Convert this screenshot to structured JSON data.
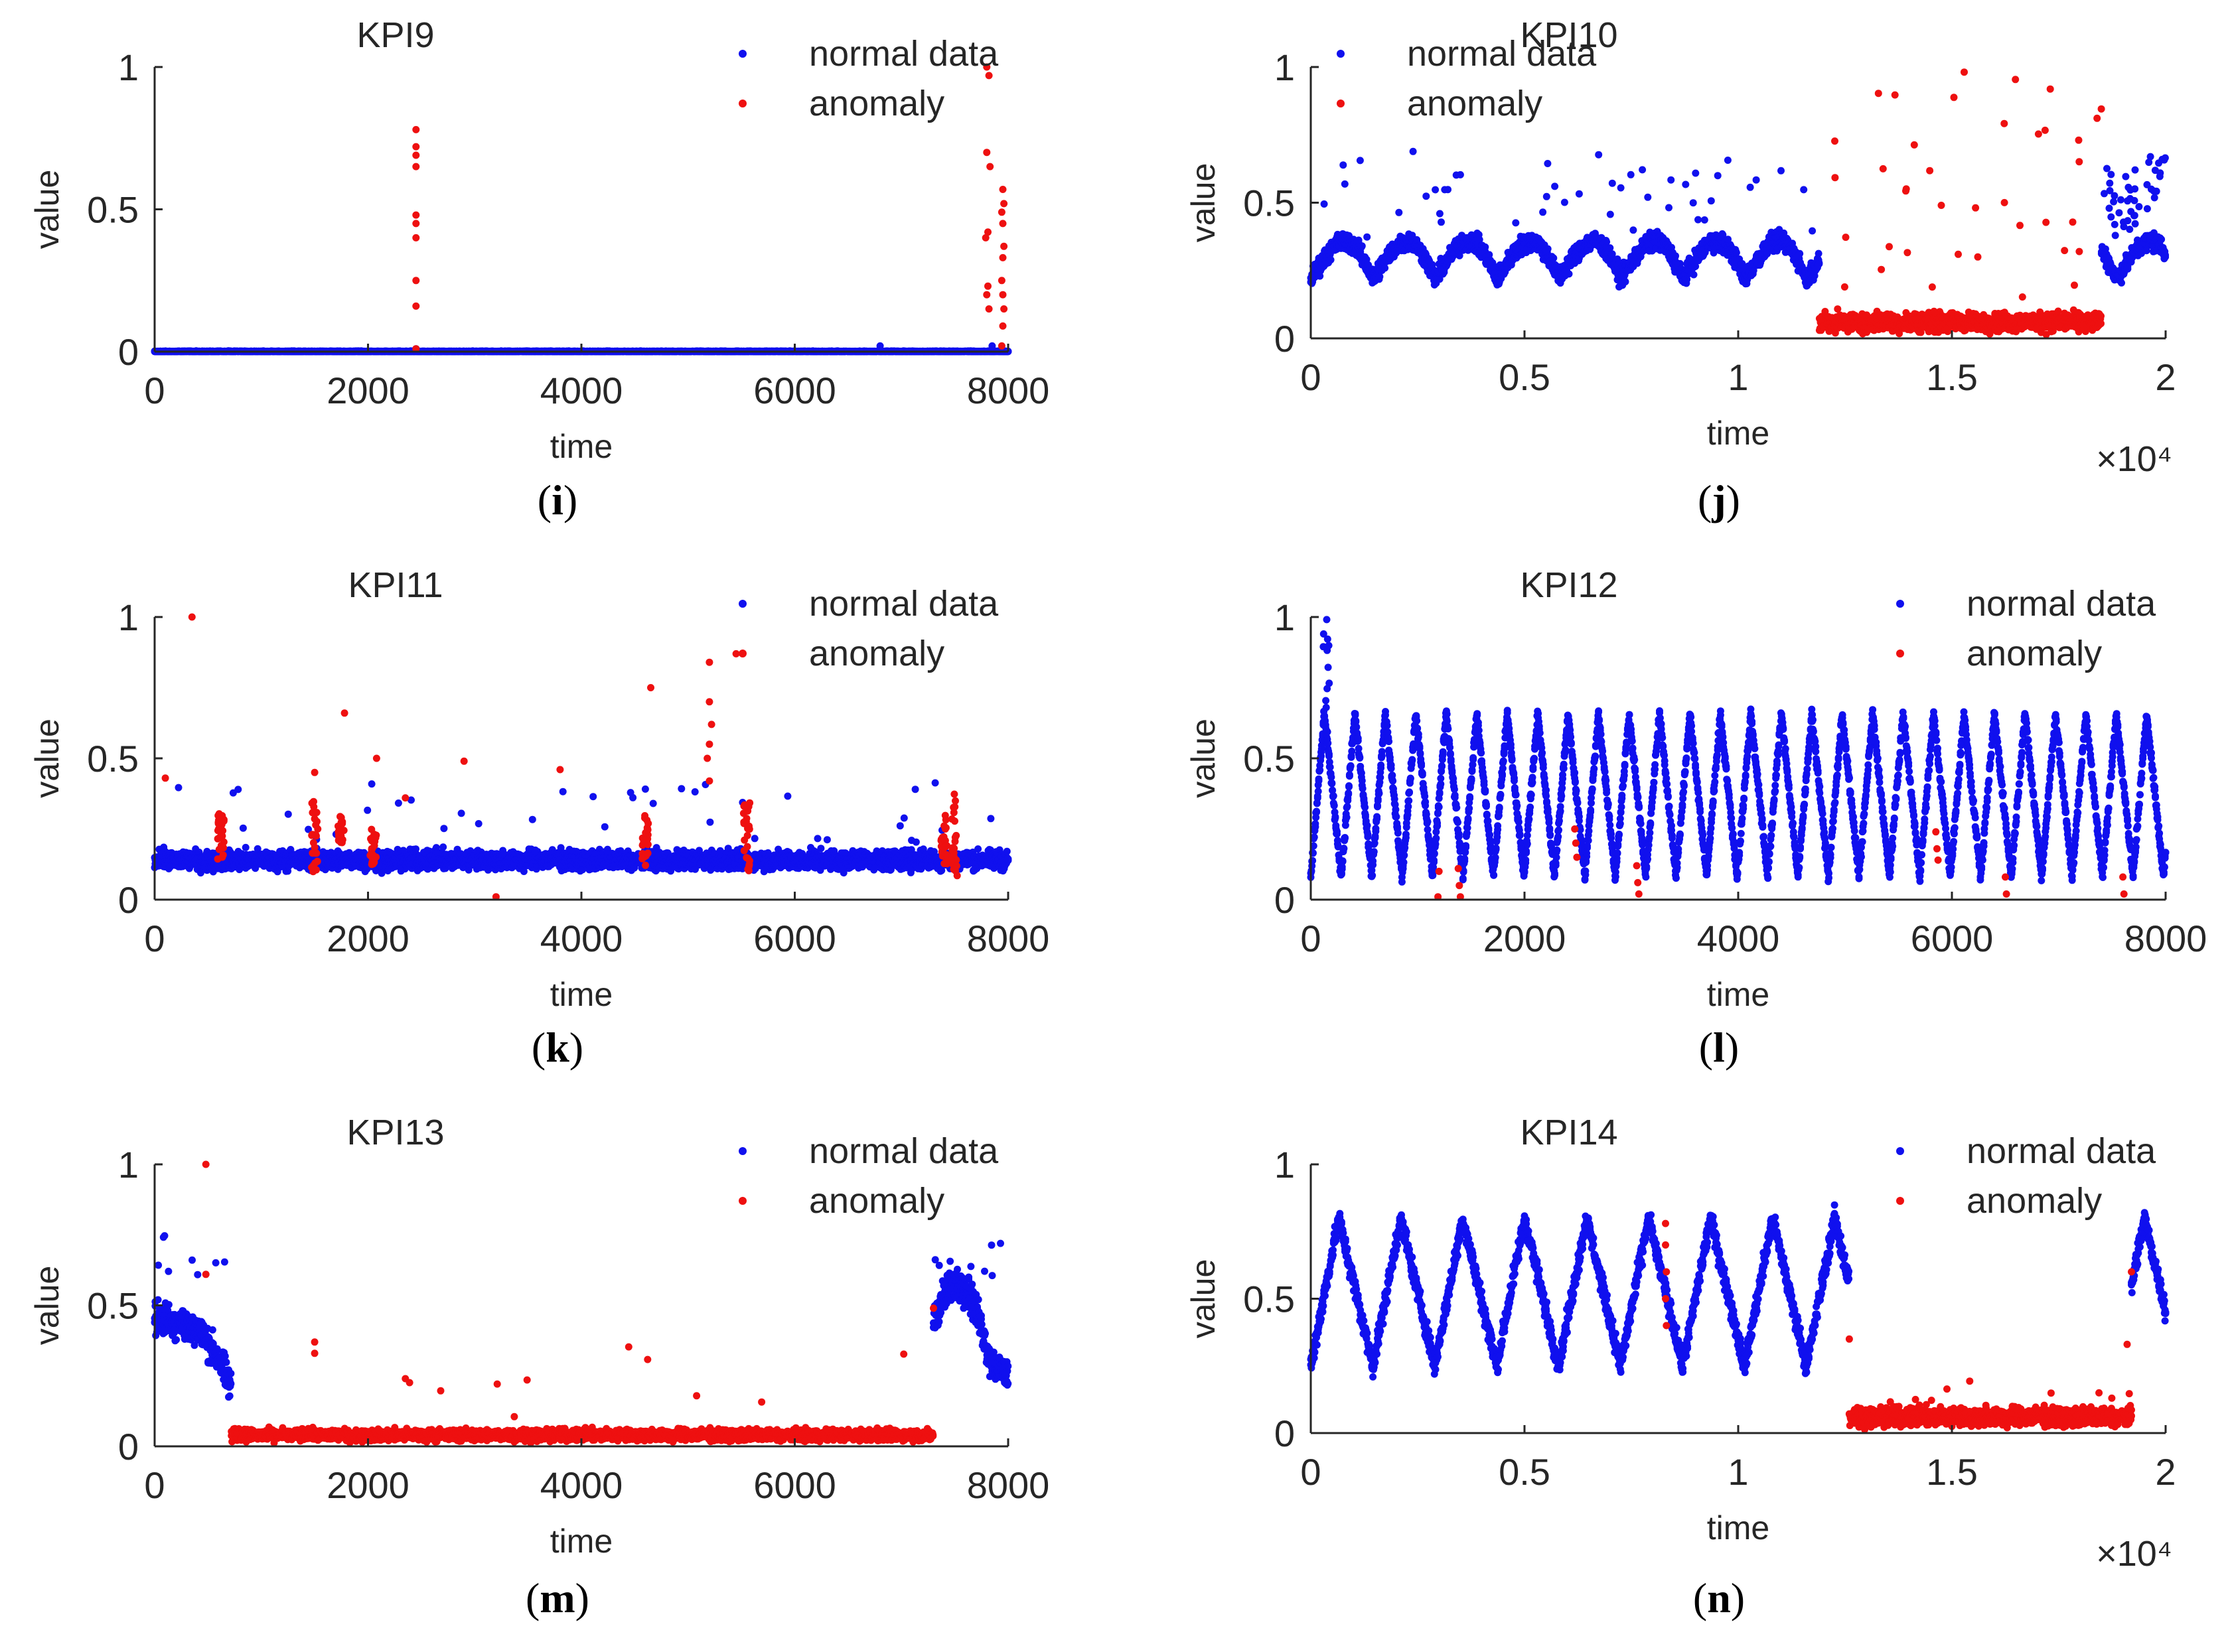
{
  "colors": {
    "normal": "#1010ee",
    "anomaly": "#ee1010",
    "axis": "#262626"
  },
  "chart_data": [
    {
      "type": "scatter",
      "panel": "i",
      "title": "KPI9",
      "xlabel": "time",
      "ylabel": "value",
      "xlim": [
        0,
        8000
      ],
      "ylim": [
        0,
        1
      ],
      "xticks": [
        0,
        2000,
        4000,
        6000,
        8000
      ],
      "xtick_labels": [
        "0",
        "2000",
        "4000",
        "6000",
        "8000"
      ],
      "yticks": [
        0,
        0.5,
        1
      ],
      "ytick_labels": [
        "0",
        "0.5",
        "1"
      ],
      "xscale_label": "",
      "legend": {
        "position": "top-right",
        "normal_label": "normal data",
        "anomaly_label": "anomaly"
      },
      "series": [
        {
          "name": "normal data",
          "pattern": "flat",
          "segments": [
            [
              0,
              8000
            ]
          ],
          "base": 0.0,
          "noise": 0.003,
          "spikes": [
            [
              2450,
              0.01
            ],
            [
              6800,
              0.02
            ],
            [
              7850,
              0.02
            ]
          ]
        },
        {
          "name": "anomaly",
          "pattern": "points",
          "points": [
            [
              2450,
              0.78
            ],
            [
              2450,
              0.72
            ],
            [
              2450,
              0.69
            ],
            [
              2450,
              0.65
            ],
            [
              2450,
              0.48
            ],
            [
              2450,
              0.45
            ],
            [
              2450,
              0.4
            ],
            [
              2450,
              0.25
            ],
            [
              2450,
              0.16
            ],
            [
              2450,
              0.01
            ],
            [
              7800,
              1.0
            ],
            [
              7820,
              0.97
            ],
            [
              7800,
              0.7
            ],
            [
              7830,
              0.65
            ],
            [
              7810,
              0.42
            ],
            [
              7790,
              0.4
            ],
            [
              7810,
              0.23
            ],
            [
              7800,
              0.2
            ],
            [
              7820,
              0.15
            ],
            [
              7950,
              0.57
            ],
            [
              7960,
              0.52
            ],
            [
              7940,
              0.49
            ],
            [
              7950,
              0.45
            ],
            [
              7960,
              0.37
            ],
            [
              7950,
              0.33
            ],
            [
              7940,
              0.25
            ],
            [
              7950,
              0.2
            ],
            [
              7960,
              0.15
            ],
            [
              7950,
              0.09
            ],
            [
              7940,
              0.02
            ]
          ]
        }
      ]
    },
    {
      "type": "scatter",
      "panel": "j",
      "title": "KPI10",
      "xlabel": "time",
      "ylabel": "value",
      "xlim": [
        0,
        20000
      ],
      "ylim": [
        0,
        1
      ],
      "xticks": [
        0,
        5000,
        10000,
        15000,
        20000
      ],
      "xtick_labels": [
        "0",
        "0.5",
        "1",
        "1.5",
        "2"
      ],
      "yticks": [
        0,
        0.5,
        1
      ],
      "ytick_labels": [
        "0",
        "0.5",
        "1"
      ],
      "xscale_label": "×10⁴",
      "legend": {
        "position": "top-left",
        "normal_label": "normal data",
        "anomaly_label": "anomaly"
      },
      "series": [
        {
          "name": "normal data",
          "pattern": "wave",
          "segments": [
            [
              0,
              11900
            ],
            [
              18500,
              20000
            ]
          ],
          "base": 0.22,
          "amp": 0.17,
          "period": 1450,
          "noise": 0.05,
          "outliers": 45
        },
        {
          "name": "anomaly",
          "pattern": "band",
          "segments": [
            [
              11900,
              18500
            ]
          ],
          "base": 0.06,
          "noise": 0.05,
          "outliers": 38,
          "outlier_range": [
            0.15,
            1.0
          ]
        }
      ]
    },
    {
      "type": "scatter",
      "panel": "k",
      "title": "KPI11",
      "xlabel": "time",
      "ylabel": "value",
      "xlim": [
        0,
        8000
      ],
      "ylim": [
        0,
        1
      ],
      "xticks": [
        0,
        2000,
        4000,
        6000,
        8000
      ],
      "xtick_labels": [
        "0",
        "2000",
        "4000",
        "6000",
        "8000"
      ],
      "yticks": [
        0,
        0.5,
        1
      ],
      "ytick_labels": [
        "0",
        "0.5",
        "1"
      ],
      "xscale_label": "",
      "legend": {
        "position": "top-right",
        "normal_label": "normal data",
        "anomaly_label": "anomaly"
      },
      "series": [
        {
          "name": "normal data",
          "pattern": "band",
          "segments": [
            [
              0,
              8000
            ]
          ],
          "base": 0.14,
          "noise": 0.05,
          "outliers": 40,
          "outlier_range": [
            0.2,
            0.42
          ]
        },
        {
          "name": "anomaly",
          "pattern": "clusters",
          "clusters": [
            [
              620,
              0.12,
              0.34
            ],
            [
              1500,
              0.08,
              0.35
            ],
            [
              1750,
              0.2,
              0.3
            ],
            [
              2050,
              0.12,
              0.25
            ],
            [
              4600,
              0.12,
              0.32
            ],
            [
              5550,
              0.1,
              0.35
            ],
            [
              7400,
              0.12,
              0.3
            ],
            [
              7500,
              0.08,
              0.38
            ]
          ],
          "points": [
            [
              100,
              0.43
            ],
            [
              350,
              1.0
            ],
            [
              1500,
              0.45
            ],
            [
              1780,
              0.66
            ],
            [
              2080,
              0.5
            ],
            [
              2350,
              0.36
            ],
            [
              2900,
              0.49
            ],
            [
              3200,
              0.01
            ],
            [
              3800,
              0.46
            ],
            [
              4650,
              0.75
            ],
            [
              5200,
              0.84
            ],
            [
              5200,
              0.7
            ],
            [
              5220,
              0.62
            ],
            [
              5200,
              0.55
            ],
            [
              5180,
              0.5
            ],
            [
              5200,
              0.42
            ],
            [
              5450,
              0.87
            ]
          ]
        }
      ]
    },
    {
      "type": "scatter",
      "panel": "l",
      "title": "KPI12",
      "xlabel": "time",
      "ylabel": "value",
      "xlim": [
        0,
        8000
      ],
      "ylim": [
        0,
        1
      ],
      "xticks": [
        0,
        2000,
        4000,
        6000,
        8000
      ],
      "xtick_labels": [
        "0",
        "2000",
        "4000",
        "6000",
        "8000"
      ],
      "yticks": [
        0,
        0.5,
        1
      ],
      "ytick_labels": [
        "0",
        "0.5",
        "1"
      ],
      "xscale_label": "",
      "legend": {
        "position": "top-right",
        "normal_label": "normal data",
        "anomaly_label": "anomaly"
      },
      "series": [
        {
          "name": "normal data",
          "pattern": "sawtooth",
          "segments": [
            [
              0,
              8000
            ]
          ],
          "base": 0.08,
          "amp": 0.58,
          "period": 285,
          "noise": 0.03,
          "spike": [
            [
              150,
              1.0
            ]
          ]
        },
        {
          "name": "anomaly",
          "pattern": "points",
          "points": [
            [
              1200,
              0.1
            ],
            [
              1190,
              0.01
            ],
            [
              1380,
              0.11
            ],
            [
              1390,
              0.05
            ],
            [
              1400,
              0.01
            ],
            [
              2470,
              0.25
            ],
            [
              2480,
              0.2
            ],
            [
              2490,
              0.15
            ],
            [
              3050,
              0.12
            ],
            [
              3060,
              0.06
            ],
            [
              3070,
              0.02
            ],
            [
              5850,
              0.24
            ],
            [
              5860,
              0.18
            ],
            [
              5870,
              0.14
            ],
            [
              6500,
              0.08
            ],
            [
              6510,
              0.02
            ],
            [
              7600,
              0.08
            ],
            [
              7610,
              0.02
            ]
          ]
        }
      ]
    },
    {
      "type": "scatter",
      "panel": "m",
      "title": "KPI13",
      "xlabel": "time",
      "ylabel": "value",
      "xlim": [
        0,
        8000
      ],
      "ylim": [
        0,
        1
      ],
      "xticks": [
        0,
        2000,
        4000,
        6000,
        8000
      ],
      "xtick_labels": [
        "0",
        "2000",
        "4000",
        "6000",
        "8000"
      ],
      "yticks": [
        0,
        0.5,
        1
      ],
      "ytick_labels": [
        "0",
        "0.5",
        "1"
      ],
      "xscale_label": "",
      "legend": {
        "position": "top-right",
        "normal_label": "normal data",
        "anomaly_label": "anomaly"
      },
      "series": [
        {
          "name": "normal data",
          "pattern": "blob",
          "segments": [
            [
              0,
              720
            ],
            [
              7300,
              8000
            ]
          ],
          "base": 0.45,
          "noise": 0.09,
          "outliers": 8
        },
        {
          "name": "anomaly",
          "pattern": "band",
          "segments": [
            [
              720,
              7300
            ]
          ],
          "base": 0.04,
          "noise": 0.03,
          "outliers": 10,
          "outlier_range": [
            0.1,
            0.38
          ],
          "points": [
            [
              480,
              1.0
            ],
            [
              480,
              0.61
            ],
            [
              1500,
              0.37
            ],
            [
              1500,
              0.33
            ],
            [
              2350,
              0.24
            ],
            [
              7300,
              0.49
            ]
          ]
        }
      ]
    },
    {
      "type": "scatter",
      "panel": "n",
      "title": "KPI14",
      "xlabel": "time",
      "ylabel": "value",
      "xlim": [
        0,
        20000
      ],
      "ylim": [
        0,
        1
      ],
      "xticks": [
        0,
        5000,
        10000,
        15000,
        20000
      ],
      "xtick_labels": [
        "0",
        "0.5",
        "1",
        "1.5",
        "2"
      ],
      "yticks": [
        0,
        0.5,
        1
      ],
      "ytick_labels": [
        "0",
        "0.5",
        "1"
      ],
      "xscale_label": "×10⁴",
      "legend": {
        "position": "top-right",
        "normal_label": "normal data",
        "anomaly_label": "anomaly"
      },
      "series": [
        {
          "name": "normal data",
          "pattern": "sawtooth",
          "segments": [
            [
              0,
              12600
            ],
            [
              19200,
              20000
            ]
          ],
          "base": 0.25,
          "amp": 0.55,
          "period": 1450,
          "noise": 0.06
        },
        {
          "name": "anomaly",
          "pattern": "band",
          "segments": [
            [
              12600,
              19200
            ]
          ],
          "base": 0.06,
          "noise": 0.05,
          "outliers": 10,
          "outlier_range": [
            0.1,
            0.2
          ],
          "points": [
            [
              8300,
              0.78
            ],
            [
              8300,
              0.7
            ],
            [
              8320,
              0.6
            ],
            [
              8300,
              0.5
            ],
            [
              8320,
              0.4
            ],
            [
              12600,
              0.35
            ],
            [
              19100,
              0.33
            ],
            [
              19200,
              0.6
            ]
          ]
        }
      ]
    }
  ],
  "captions": [
    {
      "open": "(",
      "letter": "i",
      "close": ")"
    },
    {
      "open": "(",
      "letter": "j",
      "close": ")"
    },
    {
      "open": "(",
      "letter": "k",
      "close": ")"
    },
    {
      "open": "(",
      "letter": "l",
      "close": ")"
    },
    {
      "open": "(",
      "letter": "m",
      "close": ")"
    },
    {
      "open": "(",
      "letter": "n",
      "close": ")"
    }
  ]
}
